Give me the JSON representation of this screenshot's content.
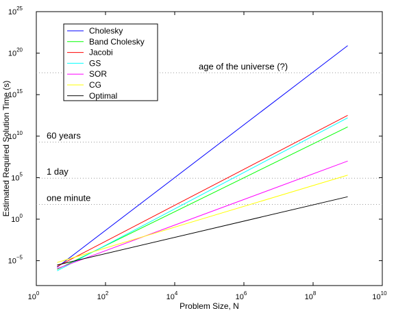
{
  "chart_data": {
    "type": "line",
    "title": "",
    "xlabel": "Problem Size, N",
    "ylabel": "Estimated Required Solution Time (s)",
    "xscale": "log",
    "yscale": "log",
    "xlim": [
      1,
      10000000000
    ],
    "ylim": [
      1e-08,
      10000000000000000000000000
    ],
    "xticks": [
      {
        "base": "10",
        "exp": "0",
        "value": 1
      },
      {
        "base": "10",
        "exp": "2",
        "value": 100
      },
      {
        "base": "10",
        "exp": "4",
        "value": 10000
      },
      {
        "base": "10",
        "exp": "6",
        "value": 1000000
      },
      {
        "base": "10",
        "exp": "8",
        "value": 100000000
      },
      {
        "base": "10",
        "exp": "10",
        "value": 10000000000
      }
    ],
    "yticks": [
      {
        "base": "10",
        "exp": "−5",
        "value": 1e-05
      },
      {
        "base": "10",
        "exp": "0",
        "value": 1
      },
      {
        "base": "10",
        "exp": "5",
        "value": 100000
      },
      {
        "base": "10",
        "exp": "10",
        "value": 10000000000
      },
      {
        "base": "10",
        "exp": "15",
        "value": 1000000000000000
      },
      {
        "base": "10",
        "exp": "20",
        "value": 100000000000000000000
      },
      {
        "base": "10",
        "exp": "25",
        "value": 10000000000000000000000000
      }
    ],
    "grid": false,
    "legend_position": "top-left",
    "reference_lines": [
      {
        "label": "age of the universe (?)",
        "value": 430000000000000000
      },
      {
        "label": "60 years",
        "value": 1900000000
      },
      {
        "label": "1 day",
        "value": 86400
      },
      {
        "label": "one minute",
        "value": 60
      }
    ],
    "series": [
      {
        "name": "Cholesky",
        "color": "#0000ff",
        "x": [
          4,
          1000000000
        ],
        "y": [
          1.6e-06,
          800000000000000000000
        ]
      },
      {
        "name": "Band Cholesky",
        "color": "#00ff00",
        "x": [
          4,
          1000000000
        ],
        "y": [
          9e-07,
          130000000000
        ]
      },
      {
        "name": "Jacobi",
        "color": "#ff0000",
        "x": [
          4,
          1000000000
        ],
        "y": [
          2e-06,
          3200000000000
        ]
      },
      {
        "name": "GS",
        "color": "#00ffff",
        "x": [
          4,
          1000000000
        ],
        "y": [
          6e-07,
          1600000000000
        ]
      },
      {
        "name": "SOR",
        "color": "#ff00ff",
        "x": [
          4,
          1000000000
        ],
        "y": [
          1.1e-06,
          10000000
        ]
      },
      {
        "name": "CG",
        "color": "#ffff00",
        "x": [
          4,
          1000000000
        ],
        "y": [
          6e-06,
          200000
        ]
      },
      {
        "name": "Optimal",
        "color": "#000000",
        "x": [
          4,
          1000000000
        ],
        "y": [
          3e-06,
          500
        ]
      }
    ]
  }
}
